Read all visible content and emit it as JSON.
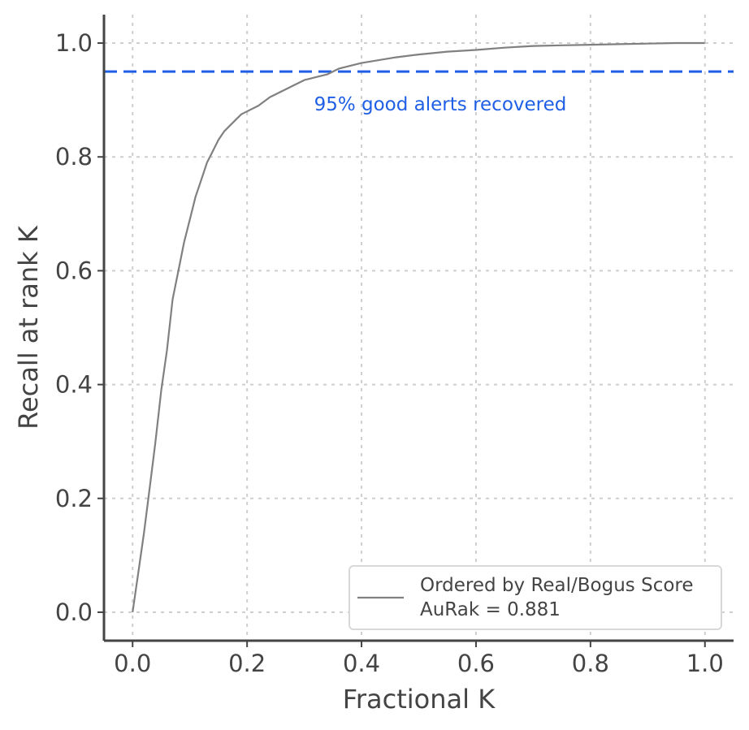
{
  "chart_data": {
    "type": "line",
    "xlabel": "Fractional K",
    "ylabel": "Recall at rank K",
    "xlim": [
      -0.05,
      1.05
    ],
    "ylim": [
      -0.05,
      1.05
    ],
    "xticks": [
      0.0,
      0.2,
      0.4,
      0.6,
      0.8,
      1.0
    ],
    "yticks": [
      0.0,
      0.2,
      0.4,
      0.6,
      0.8,
      1.0
    ],
    "xtick_labels": [
      "0.0",
      "0.2",
      "0.4",
      "0.6",
      "0.8",
      "1.0"
    ],
    "ytick_labels": [
      "0.0",
      "0.2",
      "0.4",
      "0.6",
      "0.8",
      "1.0"
    ],
    "grid": true,
    "legend_position": "bottom-right",
    "series": [
      {
        "name": "Ordered by Real/Bogus Score",
        "legend_line2": "AuRak = 0.881",
        "color": "#808080",
        "x": [
          0.0,
          0.01,
          0.02,
          0.03,
          0.04,
          0.05,
          0.06,
          0.07,
          0.08,
          0.09,
          0.1,
          0.11,
          0.12,
          0.13,
          0.14,
          0.15,
          0.16,
          0.17,
          0.18,
          0.19,
          0.2,
          0.22,
          0.24,
          0.26,
          0.28,
          0.3,
          0.32,
          0.34,
          0.36,
          0.38,
          0.4,
          0.43,
          0.46,
          0.5,
          0.55,
          0.6,
          0.65,
          0.7,
          0.75,
          0.8,
          0.85,
          0.9,
          0.95,
          1.0
        ],
        "y": [
          0.0,
          0.07,
          0.14,
          0.22,
          0.3,
          0.39,
          0.46,
          0.55,
          0.6,
          0.65,
          0.69,
          0.73,
          0.76,
          0.79,
          0.81,
          0.83,
          0.845,
          0.855,
          0.865,
          0.875,
          0.88,
          0.89,
          0.905,
          0.915,
          0.925,
          0.935,
          0.94,
          0.945,
          0.955,
          0.96,
          0.965,
          0.97,
          0.975,
          0.98,
          0.985,
          0.988,
          0.992,
          0.995,
          0.996,
          0.997,
          0.998,
          0.999,
          1.0,
          1.0
        ]
      }
    ],
    "reference_line": {
      "y": 0.95,
      "style": "dashed",
      "color": "#1f5fe6",
      "label": "95% good alerts recovered",
      "label_x": 0.3
    }
  }
}
